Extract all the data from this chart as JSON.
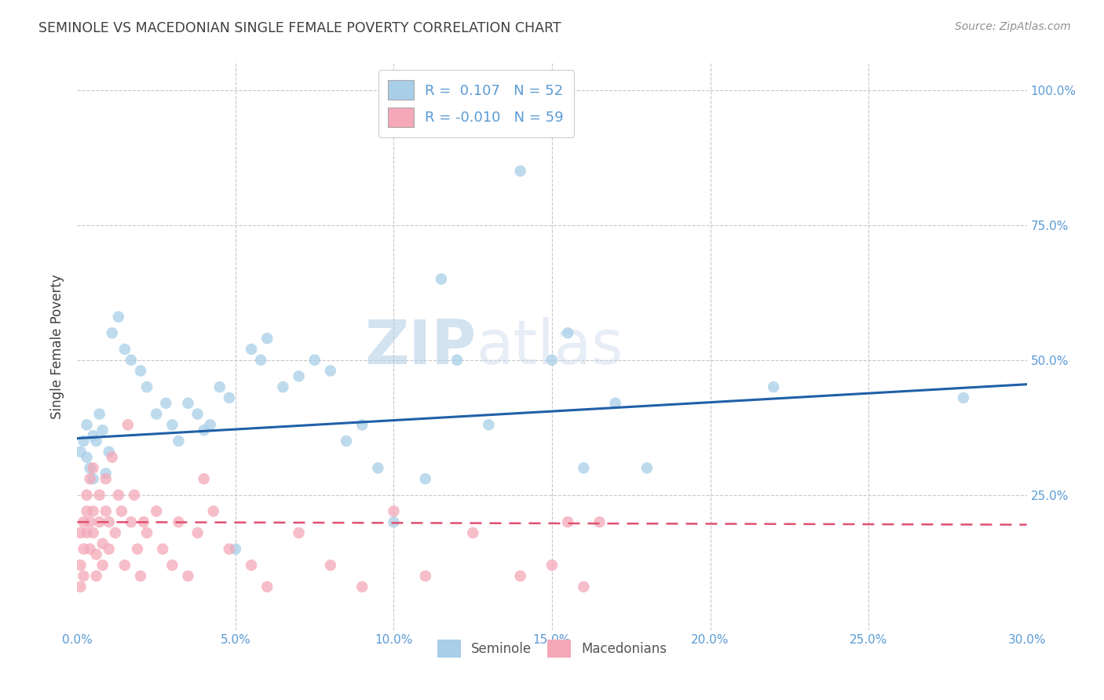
{
  "title": "SEMINOLE VS MACEDONIAN SINGLE FEMALE POVERTY CORRELATION CHART",
  "source": "Source: ZipAtlas.com",
  "ylabel": "Single Female Poverty",
  "xlim": [
    0.0,
    0.3
  ],
  "ylim": [
    0.0,
    1.05
  ],
  "watermark_zip": "ZIP",
  "watermark_atlas": "atlas",
  "blue_color": "#A8CEE8",
  "pink_color": "#F4A8B8",
  "blue_line_color": "#2060A8",
  "pink_line_color": "#E05070",
  "title_color": "#404040",
  "axis_color": "#5B9BD5",
  "grid_color": "#C8C8C8",
  "source_color": "#909090",
  "seminole_x": [
    0.001,
    0.002,
    0.003,
    0.003,
    0.004,
    0.005,
    0.005,
    0.006,
    0.007,
    0.008,
    0.009,
    0.01,
    0.011,
    0.013,
    0.015,
    0.017,
    0.02,
    0.022,
    0.025,
    0.028,
    0.03,
    0.032,
    0.035,
    0.038,
    0.04,
    0.042,
    0.045,
    0.048,
    0.05,
    0.055,
    0.058,
    0.06,
    0.065,
    0.07,
    0.075,
    0.08,
    0.085,
    0.09,
    0.095,
    0.1,
    0.11,
    0.115,
    0.12,
    0.13,
    0.14,
    0.15,
    0.155,
    0.16,
    0.17,
    0.18,
    0.22,
    0.28
  ],
  "seminole_y": [
    0.33,
    0.35,
    0.32,
    0.38,
    0.3,
    0.36,
    0.28,
    0.35,
    0.4,
    0.37,
    0.29,
    0.33,
    0.55,
    0.58,
    0.52,
    0.5,
    0.48,
    0.45,
    0.4,
    0.42,
    0.38,
    0.35,
    0.42,
    0.4,
    0.37,
    0.38,
    0.45,
    0.43,
    0.15,
    0.52,
    0.5,
    0.54,
    0.45,
    0.47,
    0.5,
    0.48,
    0.35,
    0.38,
    0.3,
    0.2,
    0.28,
    0.65,
    0.5,
    0.38,
    0.85,
    0.5,
    0.55,
    0.3,
    0.42,
    0.3,
    0.45,
    0.43
  ],
  "macedonian_x": [
    0.001,
    0.001,
    0.001,
    0.002,
    0.002,
    0.002,
    0.003,
    0.003,
    0.003,
    0.004,
    0.004,
    0.004,
    0.005,
    0.005,
    0.005,
    0.006,
    0.006,
    0.007,
    0.007,
    0.008,
    0.008,
    0.009,
    0.009,
    0.01,
    0.01,
    0.011,
    0.012,
    0.013,
    0.014,
    0.015,
    0.016,
    0.017,
    0.018,
    0.019,
    0.02,
    0.021,
    0.022,
    0.025,
    0.027,
    0.03,
    0.032,
    0.035,
    0.038,
    0.04,
    0.043,
    0.048,
    0.055,
    0.06,
    0.07,
    0.08,
    0.09,
    0.1,
    0.11,
    0.125,
    0.14,
    0.15,
    0.155,
    0.16,
    0.165
  ],
  "macedonian_y": [
    0.18,
    0.12,
    0.08,
    0.2,
    0.15,
    0.1,
    0.22,
    0.18,
    0.25,
    0.2,
    0.15,
    0.28,
    0.22,
    0.18,
    0.3,
    0.14,
    0.1,
    0.25,
    0.2,
    0.16,
    0.12,
    0.28,
    0.22,
    0.2,
    0.15,
    0.32,
    0.18,
    0.25,
    0.22,
    0.12,
    0.38,
    0.2,
    0.25,
    0.15,
    0.1,
    0.2,
    0.18,
    0.22,
    0.15,
    0.12,
    0.2,
    0.1,
    0.18,
    0.28,
    0.22,
    0.15,
    0.12,
    0.08,
    0.18,
    0.12,
    0.08,
    0.22,
    0.1,
    0.18,
    0.1,
    0.12,
    0.2,
    0.08,
    0.2
  ],
  "x_tick_vals": [
    0.0,
    0.05,
    0.1,
    0.15,
    0.2,
    0.25,
    0.3
  ],
  "x_tick_labels": [
    "0.0%",
    "5.0%",
    "10.0%",
    "15.0%",
    "20.0%",
    "25.0%",
    "30.0%"
  ],
  "y_tick_vals": [
    0.0,
    0.25,
    0.5,
    0.75,
    1.0
  ],
  "y_tick_labels": [
    "",
    "25.0%",
    "50.0%",
    "75.0%",
    "100.0%"
  ]
}
